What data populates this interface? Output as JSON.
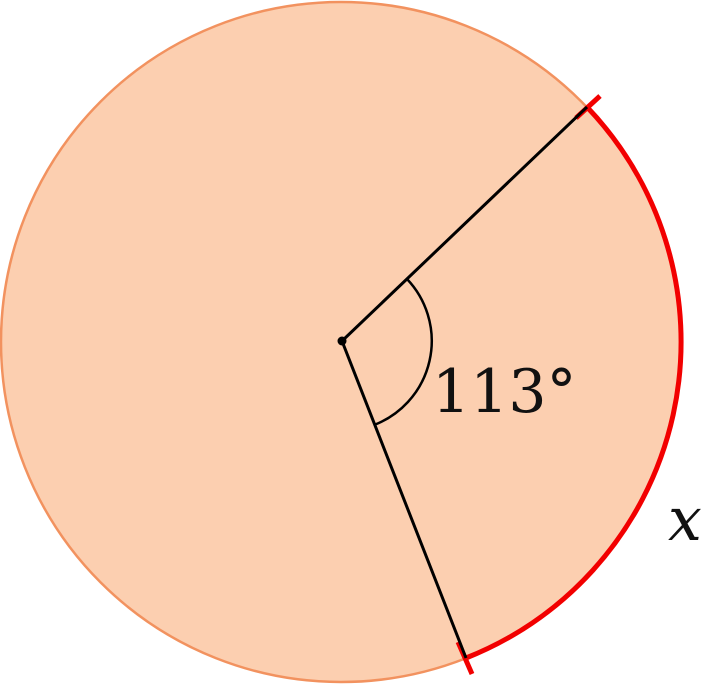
{
  "figure": {
    "angle_label": "113°",
    "arc_label": "x",
    "angle_degrees": 113
  },
  "colors": {
    "circle_fill": "#FCCFB0",
    "circle_stroke": "#F2925F",
    "arc_highlight": "#F20000",
    "lines": "#000000"
  }
}
